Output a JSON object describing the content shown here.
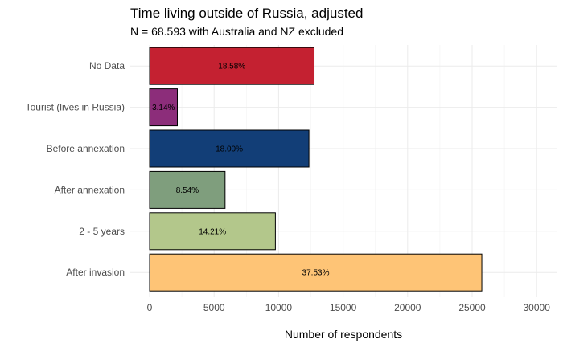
{
  "chart_data": {
    "type": "bar",
    "orientation": "horizontal",
    "title": "Time living outside of Russia, adjusted",
    "subtitle": "N = 68.593 with Australia and NZ excluded",
    "xlabel": "Number of respondents",
    "ylabel": "",
    "xlim": [
      0,
      32000
    ],
    "x_ticks": [
      0,
      5000,
      10000,
      15000,
      20000,
      25000,
      30000
    ],
    "x_tick_labels": [
      "0",
      "5000",
      "10000",
      "15000",
      "20000",
      "25000",
      "30000"
    ],
    "grid": true,
    "legend": "none",
    "categories": [
      "No Data",
      "Tourist (lives in Russia)",
      "Before annexation",
      "After annexation",
      "2 - 5 years",
      "After invasion"
    ],
    "values": [
      12750,
      2150,
      12350,
      5850,
      9750,
      25750
    ],
    "labels": [
      "18.58%",
      "3.14%",
      "18.00%",
      "8.54%",
      "14.21%",
      "37.53%"
    ],
    "colors": [
      "#c42131",
      "#8c2d7a",
      "#123e77",
      "#7f9e7d",
      "#b3c78b",
      "#fec476"
    ]
  }
}
